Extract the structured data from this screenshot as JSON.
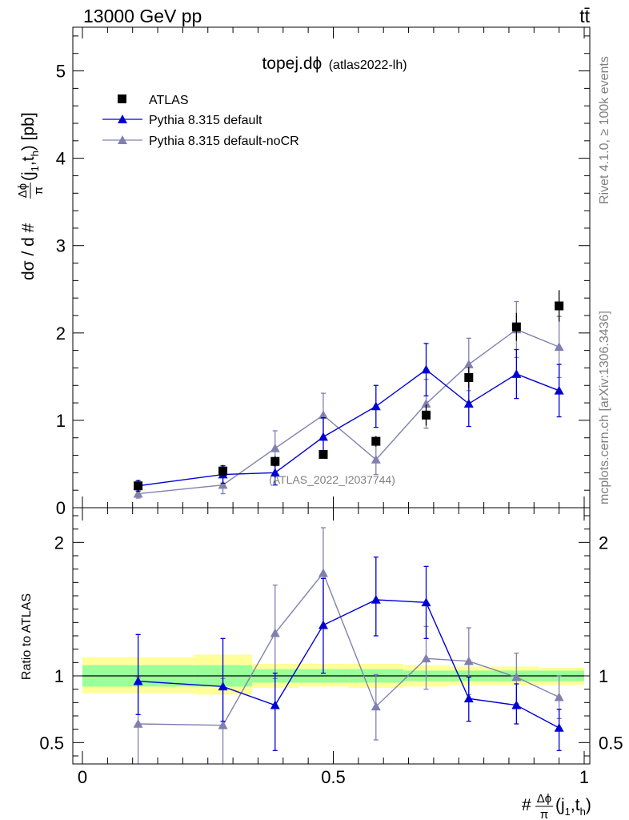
{
  "header": {
    "energy": "13000 GeV pp",
    "process": "tt̄"
  },
  "side": {
    "rivet": "Rivet 4.1.0, ≥ 100k events",
    "mcplots": "mcplots.cern.ch [arXiv:1306.3436]"
  },
  "colors": {
    "atlas": "#000000",
    "default": "#0000d6",
    "nocr": "#8080b0",
    "band_inner": "#99ff99",
    "band_outer": "#ffff99"
  },
  "chart_data": [
    {
      "type": "scatter",
      "panel": "main",
      "title": "topej.dϕ (atlas2022-lh)",
      "title_main": "topej.dϕ",
      "title_sub": "(atlas2022-lh)",
      "watermark": "(ATLAS_2022_I2037744)",
      "ylabel": "dσ / d #Δϕ/π(j1,th) [pb]",
      "ylabel_parts": {
        "prefix": "dσ / d #",
        "num": "Δϕ",
        "den": "π",
        "args": "(j",
        "s1": "1",
        "mid": ",t",
        "s2": "h",
        "tail": ") [pb]"
      },
      "ylim": [
        0,
        5.5
      ],
      "yticks": [
        0,
        1,
        2,
        3,
        4,
        5
      ],
      "ytick_labels": [
        "0",
        "1",
        "2",
        "3",
        "4",
        "5"
      ],
      "xlim": [
        0,
        1
      ],
      "legend_position": "top-left",
      "series": [
        {
          "name": "ATLAS",
          "marker": "square",
          "x": [
            0.111,
            0.28,
            0.384,
            0.48,
            0.585,
            0.685,
            0.77,
            0.865,
            0.95
          ],
          "y": [
            0.25,
            0.42,
            0.53,
            0.61,
            0.76,
            1.06,
            1.49,
            2.07,
            2.31
          ],
          "err": [
            0.07,
            0.07,
            0.06,
            0.04,
            0.06,
            0.12,
            0.12,
            0.16,
            0.18
          ]
        },
        {
          "name": "Pythia 8.315 default",
          "marker": "triangle",
          "line": true,
          "x": [
            0.111,
            0.28,
            0.384,
            0.48,
            0.585,
            0.685,
            0.77,
            0.865,
            0.95
          ],
          "y": [
            0.25,
            0.38,
            0.4,
            0.81,
            1.16,
            1.58,
            1.19,
            1.53,
            1.34
          ],
          "err": [
            0.06,
            0.1,
            0.14,
            0.22,
            0.24,
            0.3,
            0.26,
            0.28,
            0.3
          ]
        },
        {
          "name": "Pythia 8.315 default-noCR",
          "marker": "triangle",
          "line": true,
          "x": [
            0.111,
            0.28,
            0.384,
            0.48,
            0.585,
            0.685,
            0.77,
            0.865,
            0.95
          ],
          "y": [
            0.16,
            0.26,
            0.68,
            1.06,
            0.55,
            1.19,
            1.64,
            2.04,
            1.84
          ],
          "err": [
            0.05,
            0.1,
            0.2,
            0.25,
            0.17,
            0.28,
            0.3,
            0.32,
            0.35
          ]
        }
      ]
    },
    {
      "type": "scatter",
      "panel": "ratio",
      "ylabel": "Ratio to ATLAS",
      "ylim": [
        0.34,
        2.26
      ],
      "yticks": [
        0.5,
        1,
        2
      ],
      "ytick_labels": [
        "0.5",
        "1",
        "2"
      ],
      "xlim": [
        0,
        1
      ],
      "xticks": [
        0,
        0.5,
        1
      ],
      "xtick_labels": [
        "0",
        "0.5",
        "1"
      ],
      "xlabel": "#Δϕ/π(j1,th)",
      "xlabel_parts": {
        "prefix": "#",
        "num": "Δϕ",
        "den": "π",
        "args": "(j",
        "s1": "1",
        "mid": ",t",
        "s2": "h",
        "tail": ")"
      },
      "reference": 1,
      "bands": [
        {
          "x0": 0.0,
          "x1": 0.222,
          "inner": [
            0.92,
            1.08
          ],
          "outer": [
            0.87,
            1.14
          ]
        },
        {
          "x0": 0.222,
          "x1": 0.338,
          "inner": [
            0.92,
            1.08
          ],
          "outer": [
            0.86,
            1.16
          ]
        },
        {
          "x0": 0.338,
          "x1": 0.43,
          "inner": [
            0.95,
            1.05
          ],
          "outer": [
            0.91,
            1.09
          ]
        },
        {
          "x0": 0.43,
          "x1": 0.53,
          "inner": [
            0.95,
            1.05
          ],
          "outer": [
            0.92,
            1.09
          ]
        },
        {
          "x0": 0.53,
          "x1": 0.64,
          "inner": [
            0.95,
            1.05
          ],
          "outer": [
            0.91,
            1.09
          ]
        },
        {
          "x0": 0.64,
          "x1": 0.73,
          "inner": [
            0.96,
            1.04
          ],
          "outer": [
            0.92,
            1.08
          ]
        },
        {
          "x0": 0.73,
          "x1": 0.81,
          "inner": [
            0.96,
            1.04
          ],
          "outer": [
            0.93,
            1.07
          ]
        },
        {
          "x0": 0.81,
          "x1": 0.91,
          "inner": [
            0.96,
            1.04
          ],
          "outer": [
            0.93,
            1.07
          ]
        },
        {
          "x0": 0.91,
          "x1": 1.0,
          "inner": [
            0.96,
            1.04
          ],
          "outer": [
            0.93,
            1.06
          ]
        }
      ],
      "series": [
        {
          "name": "Pythia 8.315 default",
          "x": [
            0.111,
            0.28,
            0.384,
            0.48,
            0.585,
            0.685,
            0.77,
            0.865,
            0.95
          ],
          "y": [
            0.96,
            0.92,
            0.78,
            1.38,
            1.57,
            1.55,
            0.83,
            0.78,
            0.61
          ],
          "lo": [
            0.71,
            0.66,
            0.44,
            1.02,
            1.3,
            1.28,
            0.66,
            0.64,
            0.44
          ],
          "hi": [
            1.31,
            1.28,
            1.02,
            1.73,
            1.89,
            1.82,
            0.99,
            0.94,
            0.75
          ]
        },
        {
          "name": "Pythia 8.315 default-noCR",
          "x": [
            0.111,
            0.28,
            0.384,
            0.48,
            0.585,
            0.685,
            0.77,
            0.865,
            0.95
          ],
          "y": [
            0.64,
            0.63,
            1.32,
            1.77,
            0.77,
            1.13,
            1.11,
            0.99,
            0.84
          ],
          "lo": [
            0.28,
            0.28,
            0.98,
            1.38,
            0.52,
            0.9,
            0.86,
            0.79,
            0.68
          ],
          "hi": [
            0.99,
            0.98,
            1.68,
            2.11,
            1.01,
            1.37,
            1.36,
            1.17,
            1.0
          ]
        }
      ]
    }
  ]
}
